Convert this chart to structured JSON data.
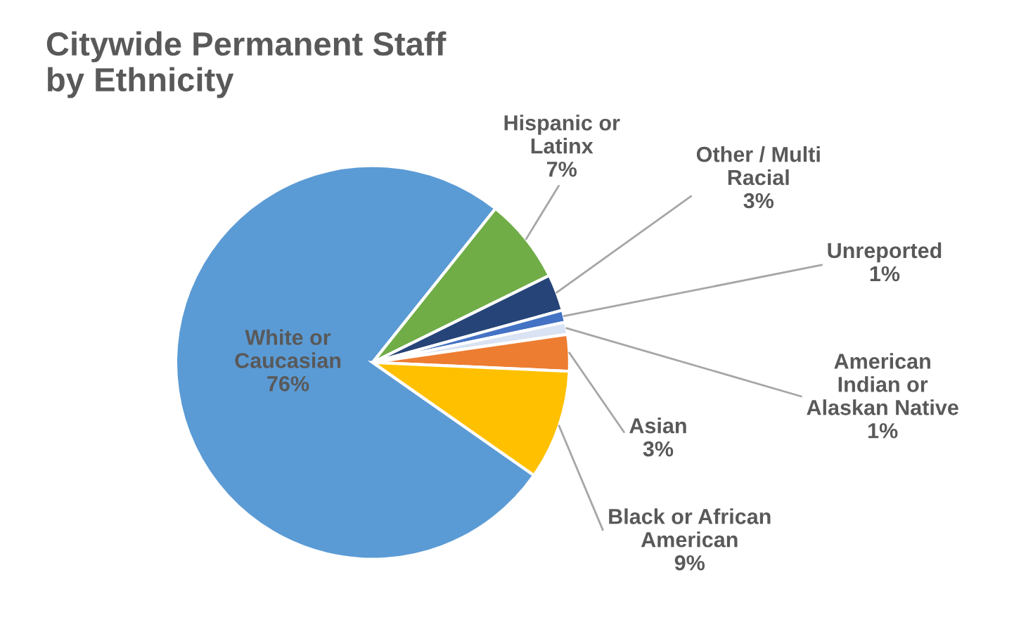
{
  "chart_data": {
    "type": "pie",
    "title": "Citywide Permanent Staff\nby Ethnicity",
    "categories": [
      "White or\nCaucasian",
      "Hispanic or\nLatinx",
      "Other / Multi\nRacial",
      "Unreported",
      "American\nIndian or\nAlaskan Native",
      "Asian",
      "Black or African\nAmerican"
    ],
    "values": [
      76,
      7,
      3,
      1,
      1,
      3,
      9
    ],
    "value_labels": [
      "76%",
      "7%",
      "3%",
      "1%",
      "1%",
      "3%",
      "9%"
    ],
    "colors": [
      "#5b9bd5",
      "#70ad47",
      "#264478",
      "#4472c4",
      "#dae3f3",
      "#ed7d31",
      "#ffc000"
    ],
    "legend": false
  }
}
